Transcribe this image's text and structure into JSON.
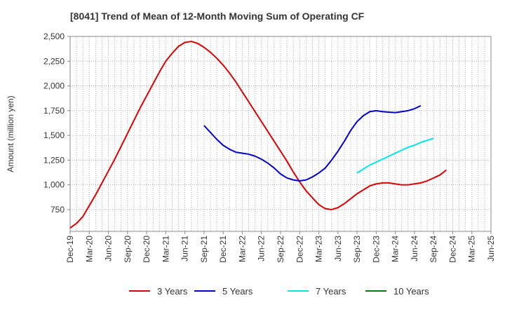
{
  "chart_data": {
    "type": "line",
    "title": "[8041]  Trend of Mean of 12-Month Moving Sum of Operating CF",
    "xlabel": "",
    "ylabel": "Amount (million yen)",
    "ylim": [
      530,
      2500
    ],
    "yticks": [
      750,
      1000,
      1250,
      1500,
      1750,
      2000,
      2250,
      2500
    ],
    "ytick_labels": [
      "750",
      "1,000",
      "1,250",
      "1,500",
      "1,750",
      "2,000",
      "2,250",
      "2,500"
    ],
    "x_index_range": [
      0,
      66
    ],
    "xticks": [
      {
        "index": 0,
        "label": "Dec-19"
      },
      {
        "index": 3,
        "label": "Mar-20"
      },
      {
        "index": 6,
        "label": "Jun-20"
      },
      {
        "index": 9,
        "label": "Sep-20"
      },
      {
        "index": 12,
        "label": "Dec-20"
      },
      {
        "index": 15,
        "label": "Mar-21"
      },
      {
        "index": 18,
        "label": "Jun-21"
      },
      {
        "index": 21,
        "label": "Sep-21"
      },
      {
        "index": 24,
        "label": "Dec-21"
      },
      {
        "index": 27,
        "label": "Mar-22"
      },
      {
        "index": 30,
        "label": "Jun-22"
      },
      {
        "index": 33,
        "label": "Sep-22"
      },
      {
        "index": 36,
        "label": "Dec-22"
      },
      {
        "index": 39,
        "label": "Mar-23"
      },
      {
        "index": 42,
        "label": "Jun-23"
      },
      {
        "index": 45,
        "label": "Sep-23"
      },
      {
        "index": 48,
        "label": "Dec-23"
      },
      {
        "index": 51,
        "label": "Mar-24"
      },
      {
        "index": 54,
        "label": "Jun-24"
      },
      {
        "index": 57,
        "label": "Sep-24"
      },
      {
        "index": 60,
        "label": "Dec-24"
      },
      {
        "index": 63,
        "label": "Mar-25"
      },
      {
        "index": 66,
        "label": "Jun-25"
      }
    ],
    "grid": true,
    "legend": "bottom",
    "series": [
      {
        "name": "3 Years",
        "color": "#dd0000",
        "start_index": 0,
        "values": [
          565,
          610,
          680,
          790,
          900,
          1020,
          1140,
          1260,
          1390,
          1520,
          1650,
          1780,
          1900,
          2020,
          2140,
          2250,
          2330,
          2400,
          2440,
          2450,
          2430,
          2390,
          2340,
          2280,
          2210,
          2130,
          2040,
          1940,
          1840,
          1740,
          1640,
          1540,
          1440,
          1340,
          1240,
          1130,
          1030,
          940,
          870,
          800,
          760,
          750,
          770,
          810,
          860,
          910,
          950,
          990,
          1010,
          1020,
          1020,
          1010,
          1000,
          1000,
          1010,
          1020,
          1040,
          1070,
          1100,
          1150
        ]
      },
      {
        "name": "5 Years",
        "color": "#0000cc",
        "start_index": 21,
        "values": [
          1600,
          1530,
          1460,
          1400,
          1360,
          1330,
          1320,
          1310,
          1290,
          1260,
          1220,
          1170,
          1110,
          1070,
          1050,
          1040,
          1050,
          1080,
          1120,
          1170,
          1250,
          1340,
          1440,
          1550,
          1640,
          1700,
          1740,
          1750,
          1740,
          1735,
          1730,
          1740,
          1750,
          1770,
          1800
        ]
      },
      {
        "name": "7 Years",
        "color": "#00e5ee",
        "start_index": 45,
        "values": [
          1120,
          1160,
          1200,
          1230,
          1260,
          1290,
          1320,
          1350,
          1380,
          1400,
          1430,
          1450,
          1470
        ]
      },
      {
        "name": "10 Years",
        "color": "#008000",
        "start_index": 0,
        "values": []
      }
    ]
  }
}
